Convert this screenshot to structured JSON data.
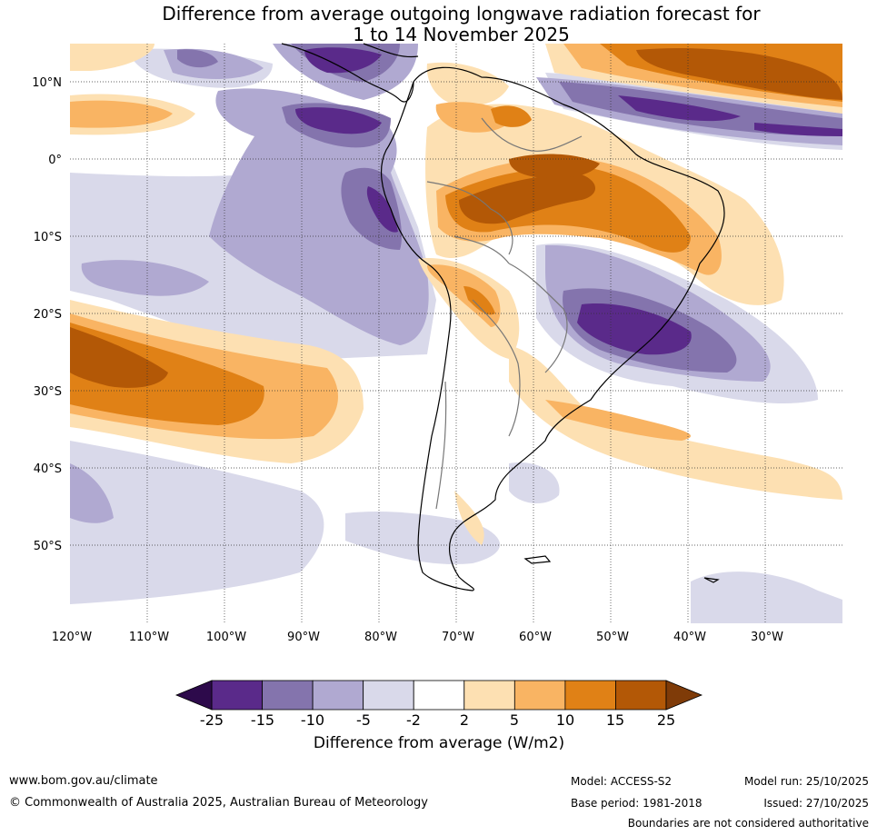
{
  "title": {
    "line1": "Difference from average outgoing longwave radiation forecast for",
    "line2": "1 to 14 November 2025"
  },
  "map": {
    "lat_ticks": [
      "10°N",
      "0°",
      "10°S",
      "20°S",
      "30°S",
      "40°S",
      "50°S"
    ],
    "lon_ticks": [
      "120°W",
      "110°W",
      "100°W",
      "90°W",
      "80°W",
      "70°W",
      "60°W",
      "50°W",
      "40°W",
      "30°W"
    ],
    "lat_range": [
      -60,
      15
    ],
    "lon_range": [
      -120,
      -20
    ]
  },
  "colorbar": {
    "ticks": [
      "-25",
      "-15",
      "-10",
      "-5",
      "-2",
      "2",
      "5",
      "10",
      "15",
      "25"
    ],
    "colors": [
      "#5a2a8a",
      "#8474ad",
      "#b0a9d1",
      "#d9d9ea",
      "#ffffff",
      "#fde0b2",
      "#f9b463",
      "#e08116",
      "#b35806"
    ],
    "extend_low_color": "#2d0a4b",
    "extend_high_color": "#7f3b08",
    "label": "Difference from average (W/m2)"
  },
  "footer": {
    "url": "www.bom.gov.au/climate",
    "copyright": "© Commonwealth of Australia 2025, Australian Bureau of Meteorology",
    "model": "Model: ACCESS-S2",
    "base_period": "Base period: 1981-2018",
    "model_run": "Model run: 25/10/2025",
    "issued": "Issued: 27/10/2025",
    "disclaimer": "Boundaries are not considered authoritative"
  }
}
